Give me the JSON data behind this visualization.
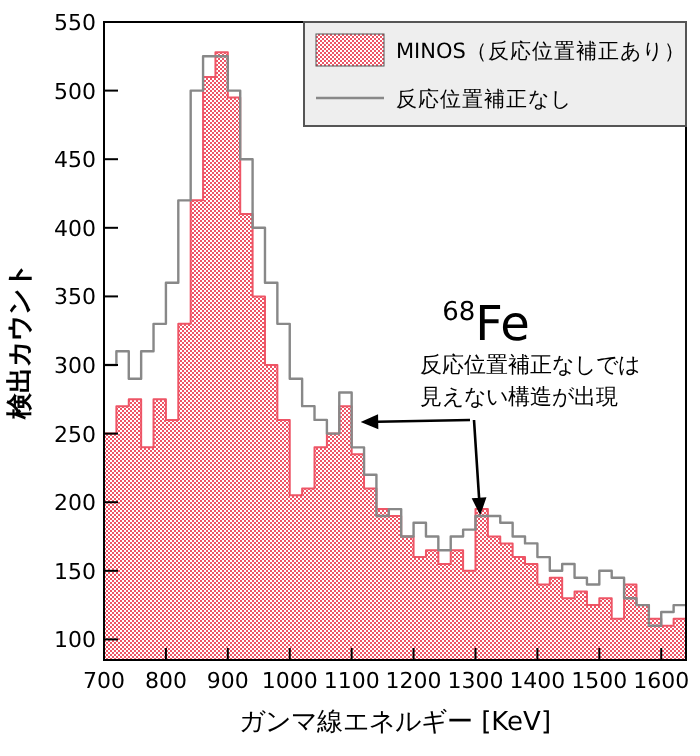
{
  "chart_data": {
    "type": "histogram",
    "xlabel": "ガンマ線エネルギー [KeV]",
    "ylabel": "検出カウント",
    "bins": [
      700,
      720,
      740,
      760,
      780,
      800,
      820,
      840,
      860,
      880,
      900,
      920,
      940,
      960,
      980,
      1000,
      1020,
      1040,
      1060,
      1080,
      1100,
      1120,
      1140,
      1160,
      1180,
      1200,
      1220,
      1240,
      1260,
      1280,
      1300,
      1320,
      1340,
      1360,
      1380,
      1400,
      1420,
      1440,
      1460,
      1480,
      1500,
      1520,
      1540,
      1560,
      1580,
      1600,
      1620,
      1640
    ],
    "series": [
      {
        "name": "MINOS（反応位置補正あり）",
        "type": "histogram",
        "color": "#ee5566",
        "values": [
          250,
          270,
          275,
          240,
          275,
          260,
          330,
          420,
          510,
          528,
          495,
          410,
          350,
          300,
          260,
          205,
          210,
          240,
          250,
          270,
          235,
          210,
          195,
          190,
          175,
          160,
          165,
          155,
          165,
          150,
          195,
          175,
          170,
          160,
          155,
          140,
          145,
          130,
          135,
          125,
          130,
          115,
          140,
          125,
          115,
          110,
          115
        ]
      },
      {
        "name": "反応位置補正なし",
        "type": "histogram",
        "color": "#888888",
        "values": [
          300,
          310,
          290,
          310,
          330,
          360,
          420,
          500,
          525,
          525,
          500,
          450,
          400,
          360,
          330,
          290,
          270,
          260,
          250,
          280,
          240,
          220,
          190,
          195,
          175,
          185,
          175,
          165,
          175,
          180,
          190,
          190,
          185,
          175,
          170,
          160,
          150,
          155,
          145,
          140,
          150,
          145,
          130,
          125,
          110,
          120,
          125
        ]
      }
    ],
    "xlim": [
      700,
      1640
    ],
    "ylim": [
      85,
      550
    ],
    "xticks": [
      700,
      800,
      900,
      1000,
      1100,
      1200,
      1300,
      1400,
      1500,
      1600
    ],
    "yticks": [
      100,
      150,
      200,
      250,
      300,
      350,
      400,
      450,
      500,
      550
    ],
    "legend": "top right",
    "grid": false,
    "annotations": [
      "$^{68}$Fe",
      "反応位置補正なしでは見えない構造が出現"
    ]
  }
}
